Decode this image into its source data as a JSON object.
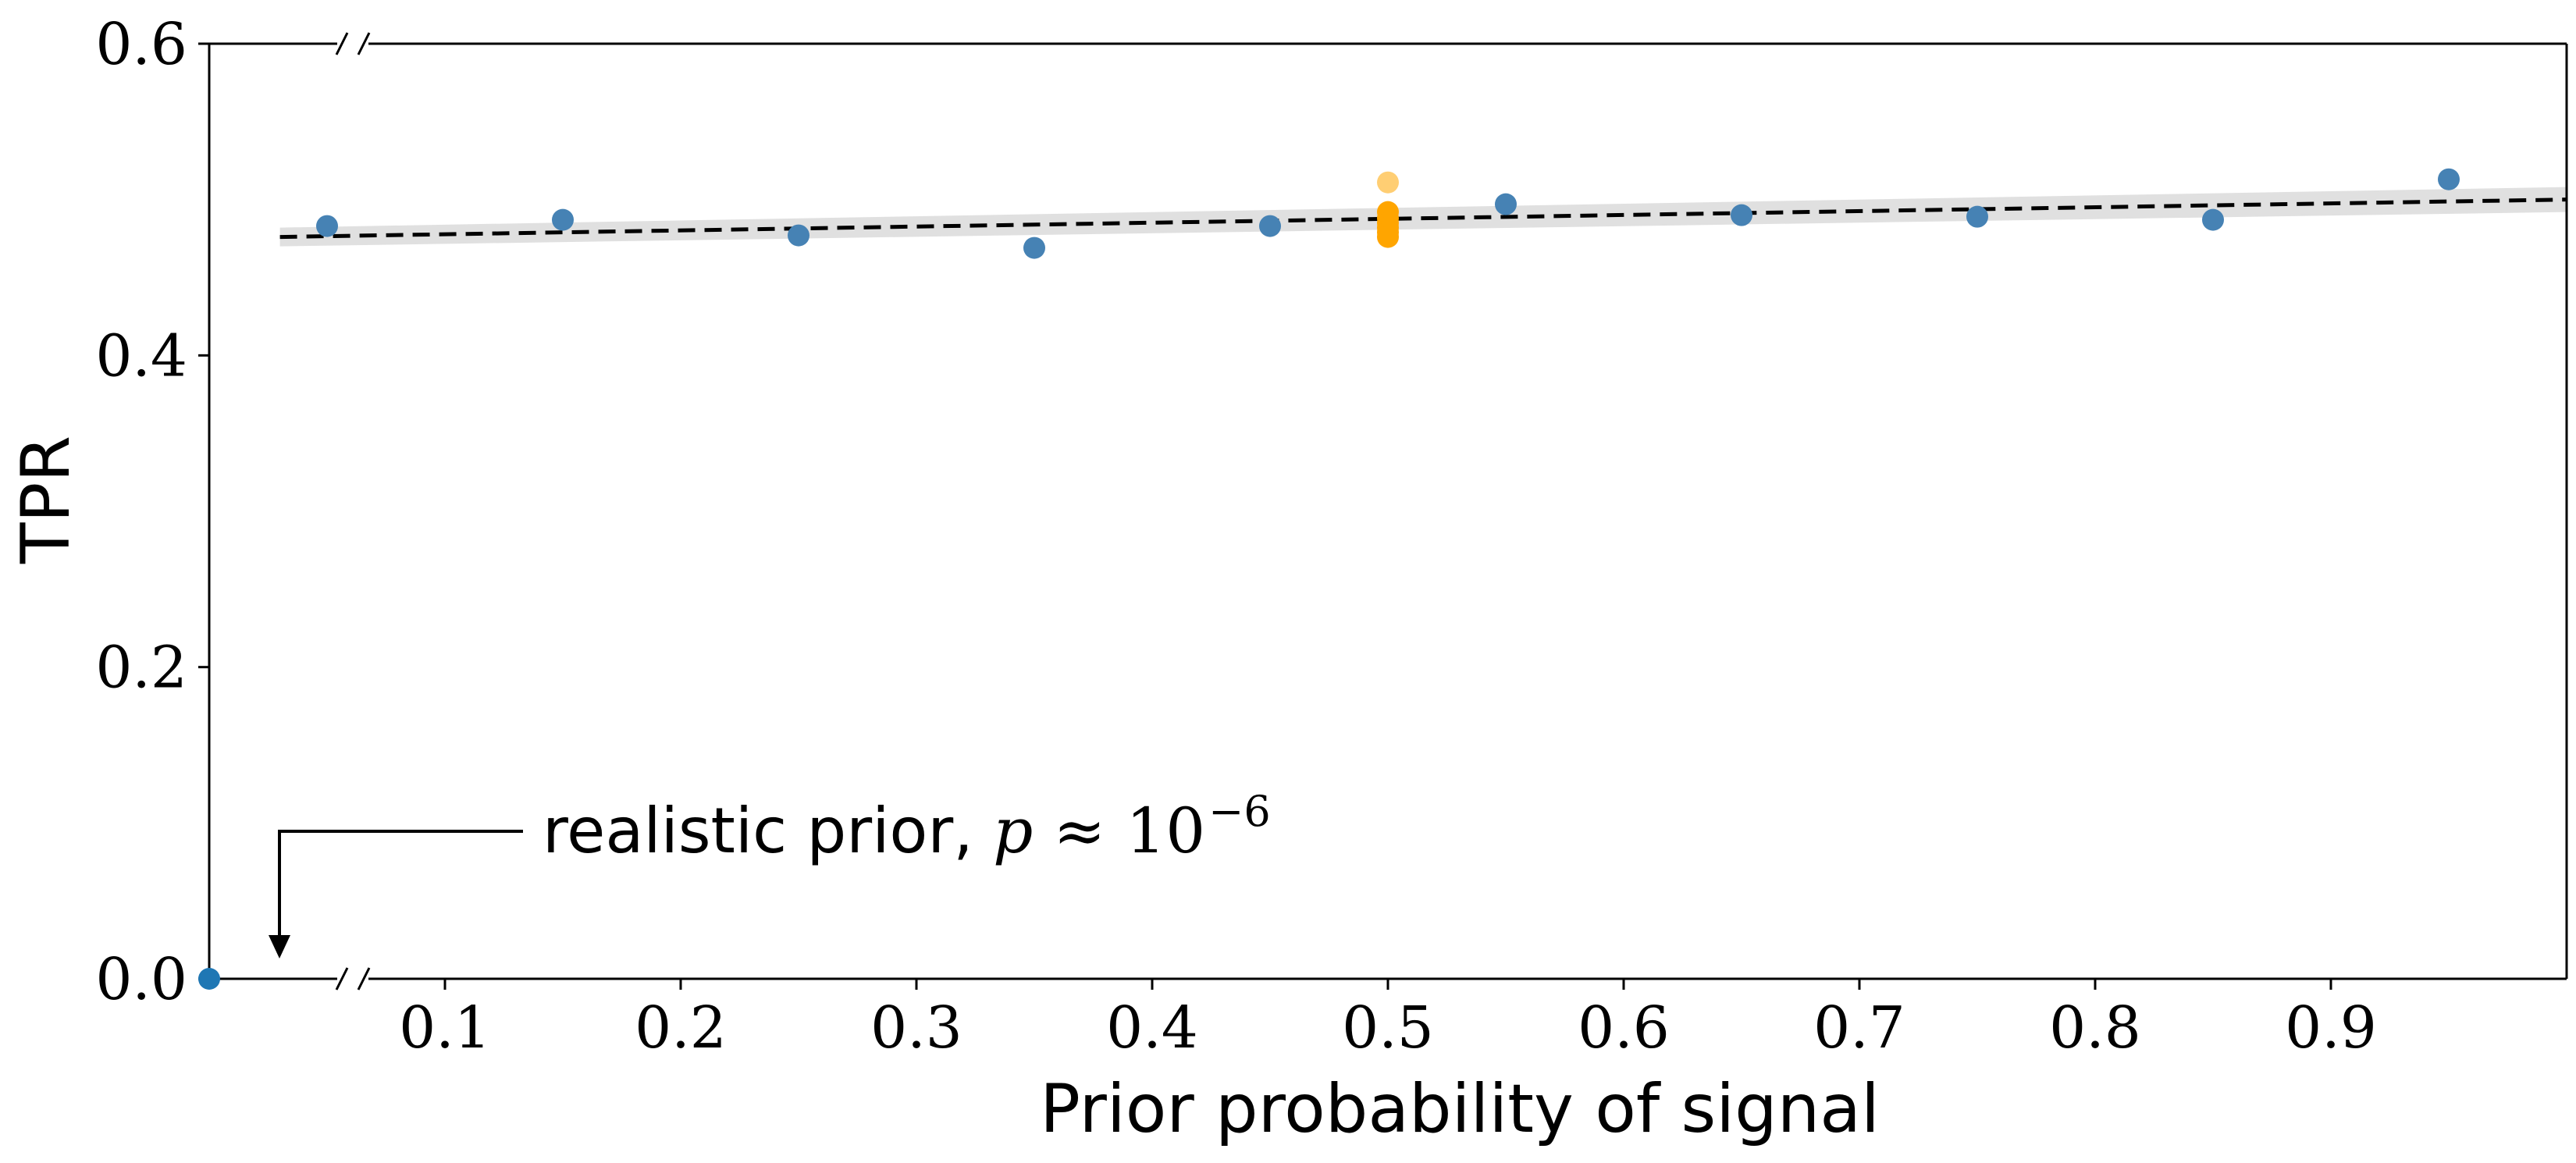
{
  "chart_data": {
    "type": "scatter",
    "xlabel": "Prior probability of signal",
    "ylabel": "TPR",
    "xlim": [
      0.0,
      1.0
    ],
    "ylim": [
      0.0,
      0.6
    ],
    "x_ticks": [
      0.1,
      0.2,
      0.3,
      0.4,
      0.5,
      0.6,
      0.7,
      0.8,
      0.9
    ],
    "x_tick_labels": [
      "0.1",
      "0.2",
      "0.3",
      "0.4",
      "0.5",
      "0.6",
      "0.7",
      "0.8",
      "0.9"
    ],
    "y_ticks": [
      0.0,
      0.2,
      0.4,
      0.6
    ],
    "y_tick_labels": [
      "0.0",
      "0.2",
      "0.4",
      "0.6"
    ],
    "grid": false,
    "axis_breaks": "left side of top and bottom axes",
    "series": [
      {
        "color": "#4682b4",
        "points": [
          {
            "x": 0.05,
            "y": 0.483
          },
          {
            "x": 0.15,
            "y": 0.487
          },
          {
            "x": 0.25,
            "y": 0.477
          },
          {
            "x": 0.35,
            "y": 0.469
          },
          {
            "x": 0.45,
            "y": 0.483
          },
          {
            "x": 0.55,
            "y": 0.497
          },
          {
            "x": 0.65,
            "y": 0.49
          },
          {
            "x": 0.75,
            "y": 0.489
          },
          {
            "x": 0.85,
            "y": 0.487
          },
          {
            "x": 0.95,
            "y": 0.513
          }
        ]
      },
      {
        "color": "#ffa500",
        "points": [
          {
            "x": 0.5,
            "y": 0.511
          },
          {
            "x": 0.5,
            "y": 0.492
          },
          {
            "x": 0.5,
            "y": 0.488
          },
          {
            "x": 0.5,
            "y": 0.485
          },
          {
            "x": 0.5,
            "y": 0.482
          },
          {
            "x": 0.5,
            "y": 0.479
          },
          {
            "x": 0.5,
            "y": 0.476
          }
        ]
      },
      {
        "color": "#1f77b4",
        "points": [
          {
            "x": 0.0,
            "y": 0.0
          }
        ]
      }
    ],
    "trend_line": {
      "style": "dashed",
      "color": "#000000",
      "x": [
        0.03,
        1.0
      ],
      "y": [
        0.476,
        0.5
      ],
      "band_color": "#cccccc"
    },
    "annotation": {
      "text": "realistic prior, ",
      "math_var": "p",
      "math_rel": "≈",
      "math_base": "10",
      "math_exp": "−6",
      "target": {
        "x": 0.0,
        "y": 0.0
      }
    }
  }
}
